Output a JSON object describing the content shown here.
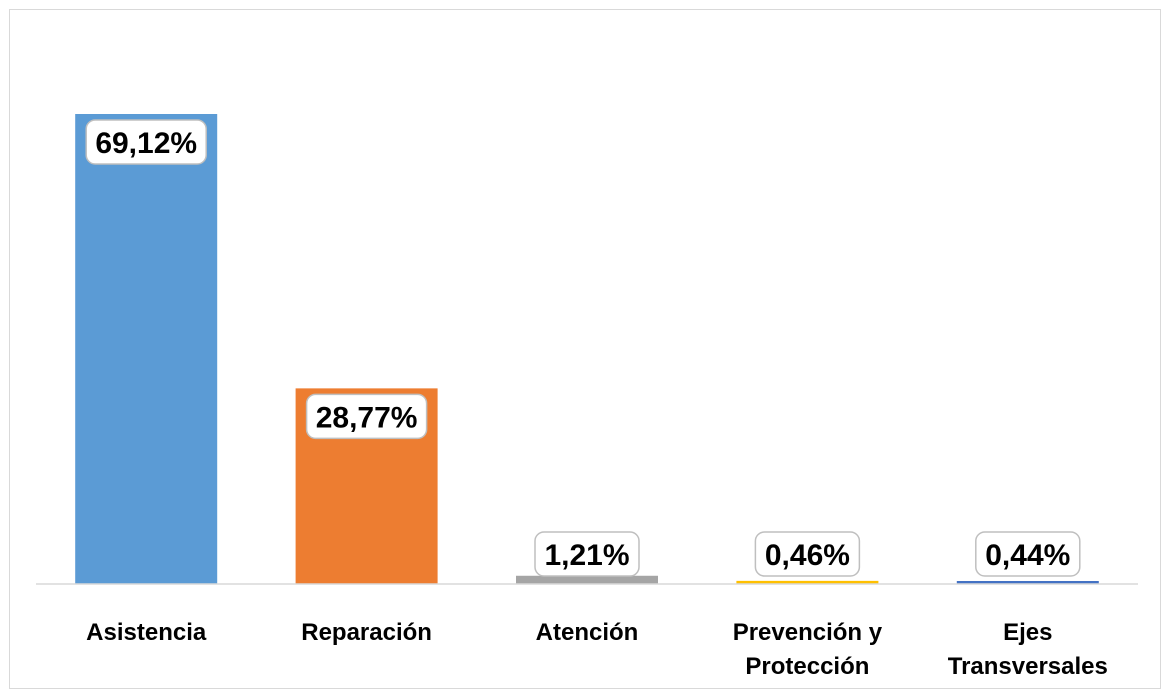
{
  "chart_data": {
    "type": "bar",
    "categories": [
      [
        "Asistencia"
      ],
      [
        "Reparación"
      ],
      [
        "Atención"
      ],
      [
        "Prevención y",
        "Protección"
      ],
      [
        "Ejes",
        "Transversales"
      ]
    ],
    "values": [
      69.12,
      28.77,
      1.21,
      0.46,
      0.44
    ],
    "data_labels": [
      "69,12%",
      "28,77%",
      "1,21%",
      "0,46%",
      "0,44%"
    ],
    "colors": [
      "#5b9bd5",
      "#ed7d31",
      "#a5a5a5",
      "#ffc000",
      "#4472c4"
    ],
    "ylim": [
      0,
      69.12
    ],
    "grid": false,
    "legend": false
  }
}
